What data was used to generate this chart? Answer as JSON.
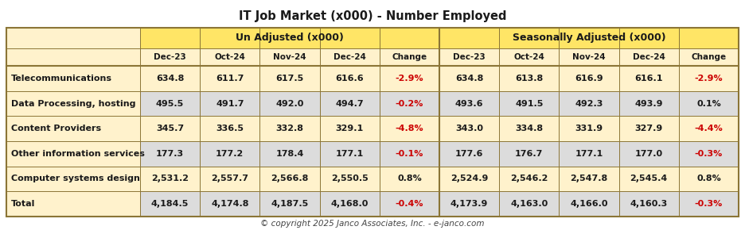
{
  "title": "IT Job Market (x000) - Number Employed",
  "copyright": "© copyright 2025 Janco Associates, Inc. - e-janco.com",
  "col_header1": [
    "Un Adjusted (x000)",
    "Seasonally Adjusted (x000)"
  ],
  "col_header2": [
    "Dec-23",
    "Oct-24",
    "Nov-24",
    "Dec-24",
    "Change",
    "Dec-23",
    "Oct-24",
    "Nov-24",
    "Dec-24",
    "Change"
  ],
  "row_labels": [
    "Telecommunications",
    "Data Processing, hosting",
    "Content Providers",
    "Other information services",
    "Computer systems design",
    "Total"
  ],
  "data": [
    [
      "634.8",
      "611.7",
      "617.5",
      "616.6",
      "-2.9%",
      "634.8",
      "613.8",
      "616.9",
      "616.1",
      "-2.9%"
    ],
    [
      "495.5",
      "491.7",
      "492.0",
      "494.7",
      "-0.2%",
      "493.6",
      "491.5",
      "492.3",
      "493.9",
      "0.1%"
    ],
    [
      "345.7",
      "336.5",
      "332.8",
      "329.1",
      "-4.8%",
      "343.0",
      "334.8",
      "331.9",
      "327.9",
      "-4.4%"
    ],
    [
      "177.3",
      "177.2",
      "178.4",
      "177.1",
      "-0.1%",
      "177.6",
      "176.7",
      "177.1",
      "177.0",
      "-0.3%"
    ],
    [
      "2,531.2",
      "2,557.7",
      "2,566.8",
      "2,550.5",
      "0.8%",
      "2,524.9",
      "2,546.2",
      "2,547.8",
      "2,545.4",
      "0.8%"
    ],
    [
      "4,184.5",
      "4,174.8",
      "4,187.5",
      "4,168.0",
      "-0.4%",
      "4,173.9",
      "4,163.0",
      "4,166.0",
      "4,160.3",
      "-0.3%"
    ]
  ],
  "row_bold": [
    true,
    false,
    true,
    false,
    true,
    true
  ],
  "row_bg": [
    "#FFF2CC",
    "#DCDCDC",
    "#FFF2CC",
    "#DCDCDC",
    "#FFF2CC",
    "#DCDCDC"
  ],
  "label_col_bg": "#FFF2CC",
  "bg_header1": "#FFE566",
  "bg_header2": "#FFF2CC",
  "bg_white": "#FFFFFF",
  "border_color": "#8B7536",
  "text_dark": "#1A1A1A",
  "text_red": "#CC0000",
  "text_title": "#1A1A1A",
  "figsize": [
    9.36,
    2.95
  ],
  "dpi": 100
}
